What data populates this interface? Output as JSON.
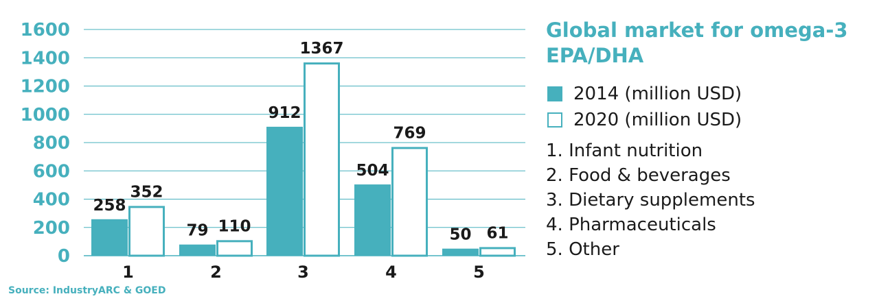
{
  "chart_data": {
    "type": "bar",
    "title": "Global market for omega-3 EPA/DHA",
    "categories": [
      "1",
      "2",
      "3",
      "4",
      "5"
    ],
    "category_names": [
      "1. Infant nutrition",
      "2. Food & beverages",
      "3. Dietary supplements",
      "4. Pharmaceuticals",
      "5. Other"
    ],
    "series": [
      {
        "name": "2014 (million USD)",
        "values": [
          258,
          79,
          912,
          504,
          50
        ],
        "fill": "#46b0bd",
        "stroke": "#46b0bd"
      },
      {
        "name": "2020 (million USD)",
        "values": [
          352,
          110,
          1367,
          769,
          61
        ],
        "fill": "#ffffff",
        "stroke": "#46b0bd"
      }
    ],
    "ylim": [
      0,
      1600
    ],
    "yticks": [
      0,
      200,
      400,
      600,
      800,
      1000,
      1200,
      1400,
      1600
    ],
    "grid": true,
    "legend_position": "right",
    "source": "Source: IndustryARC & GOED",
    "colors": {
      "accent": "#46b0bd",
      "text": "#1a1a1a"
    }
  }
}
